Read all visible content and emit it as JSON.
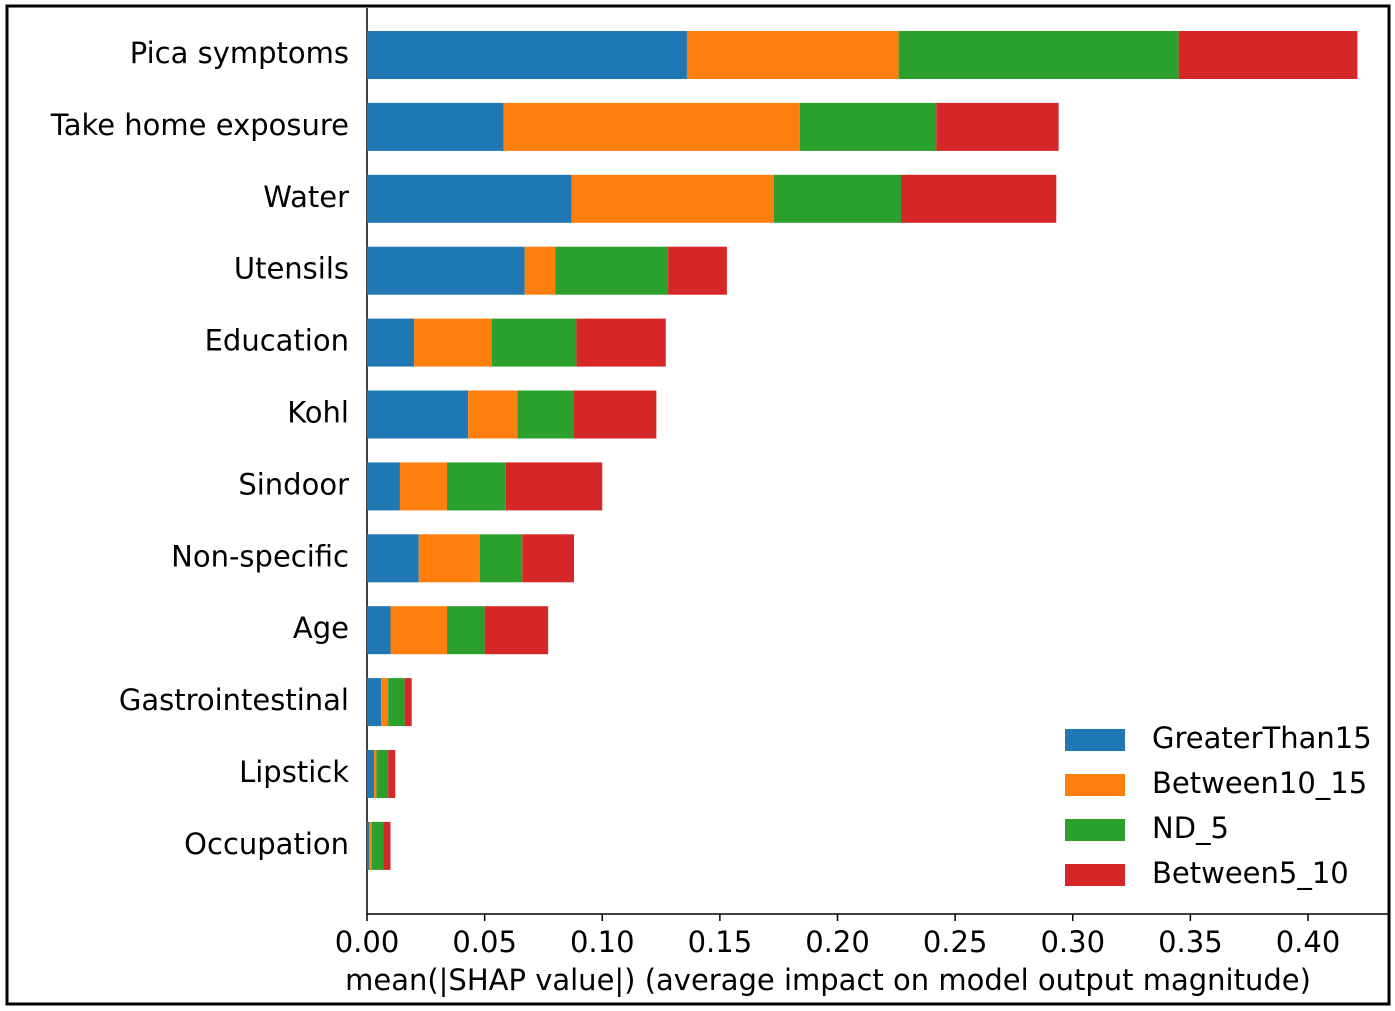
{
  "chart_data": {
    "type": "stacked_barh",
    "xlabel": "mean(|SHAP value|) (average impact on model output magnitude)",
    "categories": [
      "Pica symptoms",
      "Take home exposure",
      "Water",
      "Utensils",
      "Education",
      "Kohl",
      "Sindoor",
      "Non-specific",
      "Age",
      "Gastrointestinal",
      "Lipstick",
      "Occupation"
    ],
    "series": [
      {
        "name": "GreaterThan15",
        "color": "#1f77b4",
        "values": [
          0.136,
          0.058,
          0.087,
          0.067,
          0.02,
          0.043,
          0.014,
          0.022,
          0.01,
          0.006,
          0.003,
          0.001
        ]
      },
      {
        "name": "Between10_15",
        "color": "#ff7f0e",
        "values": [
          0.09,
          0.126,
          0.086,
          0.013,
          0.033,
          0.021,
          0.02,
          0.026,
          0.024,
          0.003,
          0.001,
          0.001
        ]
      },
      {
        "name": "ND_5",
        "color": "#2ca02c",
        "values": [
          0.119,
          0.058,
          0.054,
          0.048,
          0.036,
          0.024,
          0.025,
          0.018,
          0.016,
          0.007,
          0.005,
          0.005
        ]
      },
      {
        "name": "Between5_10",
        "color": "#d62728",
        "values": [
          0.076,
          0.052,
          0.066,
          0.025,
          0.038,
          0.035,
          0.041,
          0.022,
          0.027,
          0.003,
          0.003,
          0.003
        ]
      }
    ],
    "xlim": [
      0,
      0.43
    ],
    "xticks": [
      {
        "value": 0,
        "label": "0.00"
      },
      {
        "value": 0.05,
        "label": "0.05"
      },
      {
        "value": 0.1,
        "label": "0.10"
      },
      {
        "value": 0.15,
        "label": "0.15"
      },
      {
        "value": 0.2,
        "label": "0.20"
      },
      {
        "value": 0.25,
        "label": "0.25"
      },
      {
        "value": 0.3,
        "label": "0.30"
      },
      {
        "value": 0.35,
        "label": "0.35"
      },
      {
        "value": 0.4,
        "label": "0.40"
      }
    ],
    "legend": "lower right"
  }
}
